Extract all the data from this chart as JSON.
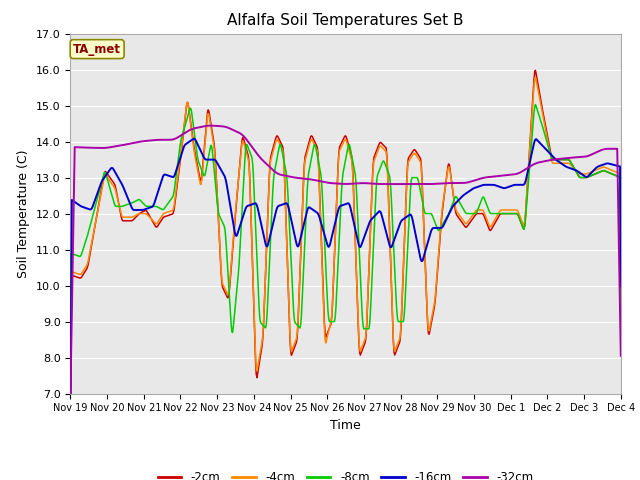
{
  "title": "Alfalfa Soil Temperatures Set B",
  "xlabel": "Time",
  "ylabel": "Soil Temperature (C)",
  "ylim": [
    7.0,
    17.0
  ],
  "yticks": [
    7.0,
    8.0,
    9.0,
    10.0,
    11.0,
    12.0,
    13.0,
    14.0,
    15.0,
    16.0,
    17.0
  ],
  "xtick_labels": [
    "Nov 19",
    "Nov 20",
    "Nov 21",
    "Nov 22",
    "Nov 23",
    "Nov 24",
    "Nov 25",
    "Nov 26",
    "Nov 27",
    "Nov 28",
    "Nov 29",
    "Nov 30",
    "Dec 1",
    "Dec 2",
    "Dec 3",
    "Dec 4"
  ],
  "colors": {
    "2cm": "#cc0000",
    "4cm": "#ff8800",
    "8cm": "#00cc00",
    "16cm": "#0000cc",
    "32cm": "#aa00aa"
  },
  "legend_labels": [
    "-2cm",
    "-4cm",
    "-8cm",
    "-16cm",
    "-32cm"
  ],
  "annotation_text": "TA_met",
  "annotation_color": "#8B0000",
  "annotation_bg": "#ffffcc",
  "fig_bg": "#ffffff",
  "plot_bg": "#e8e8e8",
  "title_fontsize": 11,
  "axis_fontsize": 9,
  "tick_fontsize": 8
}
